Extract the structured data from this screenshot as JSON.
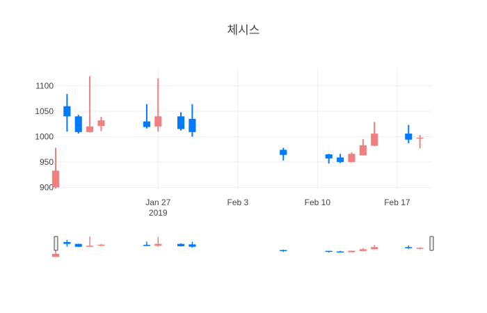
{
  "chart_data": {
    "type": "candlestick",
    "title": "체시스",
    "colors": {
      "up": "#f08080",
      "down": "#007bff"
    },
    "y_range": [
      895,
      1135
    ],
    "y_ticks": [
      900,
      950,
      1000,
      1050,
      1100
    ],
    "x_range": [
      "2019-01-18",
      "2019-02-20"
    ],
    "x_ticks": [
      {
        "date": "2019-01-27",
        "label": "Jan 27",
        "sublabel": "2019"
      },
      {
        "date": "2019-02-03",
        "label": "Feb 3",
        "sublabel": ""
      },
      {
        "date": "2019-02-10",
        "label": "Feb 10",
        "sublabel": ""
      },
      {
        "date": "2019-02-17",
        "label": "Feb 17",
        "sublabel": ""
      }
    ],
    "grid": true,
    "rangeslider": true,
    "candles": [
      {
        "date": "2019-01-18",
        "open": 900,
        "high": 978,
        "low": 898,
        "close": 933
      },
      {
        "date": "2019-01-19",
        "open": 1060,
        "high": 1084,
        "low": 1010,
        "close": 1040
      },
      {
        "date": "2019-01-20",
        "open": 1040,
        "high": 1043,
        "low": 1006,
        "close": 1009
      },
      {
        "date": "2019-01-21",
        "open": 1009,
        "high": 1119,
        "low": 1008,
        "close": 1020
      },
      {
        "date": "2019-01-22",
        "open": 1021,
        "high": 1039,
        "low": 1011,
        "close": 1032
      },
      {
        "date": "2019-01-26",
        "open": 1030,
        "high": 1064,
        "low": 1016,
        "close": 1019
      },
      {
        "date": "2019-01-27",
        "open": 1020,
        "high": 1115,
        "low": 1010,
        "close": 1040
      },
      {
        "date": "2019-01-29",
        "open": 1040,
        "high": 1048,
        "low": 1012,
        "close": 1015
      },
      {
        "date": "2019-01-30",
        "open": 1035,
        "high": 1064,
        "low": 1000,
        "close": 1009
      },
      {
        "date": "2019-02-07",
        "open": 974,
        "high": 978,
        "low": 953,
        "close": 964
      },
      {
        "date": "2019-02-11",
        "open": 965,
        "high": 966,
        "low": 947,
        "close": 957
      },
      {
        "date": "2019-02-12",
        "open": 959,
        "high": 966,
        "low": 948,
        "close": 950
      },
      {
        "date": "2019-02-13",
        "open": 950,
        "high": 969,
        "low": 949,
        "close": 966
      },
      {
        "date": "2019-02-14",
        "open": 963,
        "high": 995,
        "low": 963,
        "close": 983
      },
      {
        "date": "2019-02-15",
        "open": 982,
        "high": 1029,
        "low": 981,
        "close": 1006
      },
      {
        "date": "2019-02-18",
        "open": 1006,
        "high": 1023,
        "low": 987,
        "close": 994
      },
      {
        "date": "2019-02-19",
        "open": 996,
        "high": 1003,
        "low": 977,
        "close": 998
      }
    ]
  }
}
